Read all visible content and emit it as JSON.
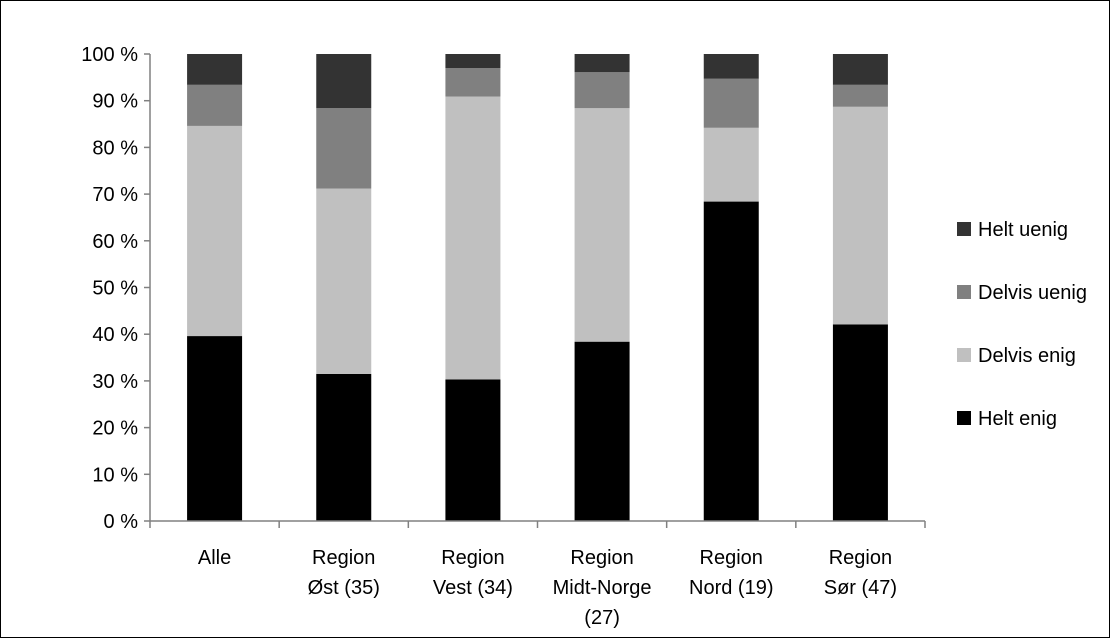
{
  "chart_data": {
    "type": "bar",
    "stacked": true,
    "categories": [
      [
        "Alle"
      ],
      [
        "Region",
        "Øst (35)"
      ],
      [
        "Region",
        "Vest (34)"
      ],
      [
        "Region",
        "Midt-Norge",
        "(27)"
      ],
      [
        "Region",
        "Nord (19)"
      ],
      [
        "Region",
        "Sør (47)"
      ]
    ],
    "series": [
      {
        "name": "Helt enig",
        "color": "#000000",
        "values": [
          39.6,
          31.5,
          30.3,
          38.4,
          68.4,
          42.1
        ]
      },
      {
        "name": "Delvis enig",
        "color": "#c0c0c0",
        "values": [
          45.0,
          39.7,
          60.6,
          50.0,
          15.8,
          46.6
        ]
      },
      {
        "name": "Delvis uenig",
        "color": "#808080",
        "values": [
          8.8,
          17.2,
          6.1,
          7.7,
          10.5,
          4.7
        ]
      },
      {
        "name": "Helt uenig",
        "color": "#333333",
        "values": [
          6.6,
          11.6,
          3.0,
          3.9,
          5.3,
          6.6
        ]
      }
    ],
    "ylim": [
      0,
      100
    ],
    "yticks": [
      "0 %",
      "10 %",
      "20 %",
      "30 %",
      "40 %",
      "50 %",
      "60 %",
      "70 %",
      "80 %",
      "90 %",
      "100 %"
    ],
    "legend_order": [
      "Helt uenig",
      "Delvis uenig",
      "Delvis enig",
      "Helt enig"
    ],
    "legend_position": "right",
    "grid": false
  }
}
